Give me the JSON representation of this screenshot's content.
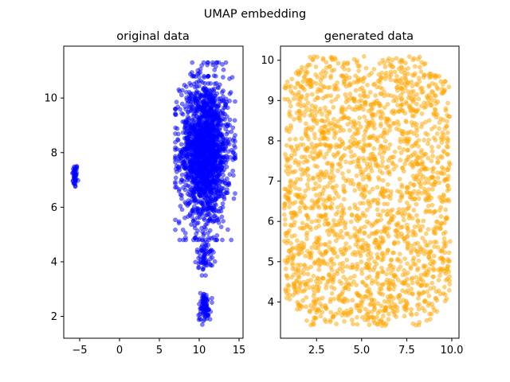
{
  "figure": {
    "suptitle": "UMAP embedding"
  },
  "chart_data": [
    {
      "type": "scatter",
      "title": "original data",
      "xlabel": "",
      "ylabel": "",
      "xlim": [
        -7,
        15.5
      ],
      "ylim": [
        1.2,
        11.9
      ],
      "xticks": [
        -5,
        0,
        5,
        10,
        15
      ],
      "xtick_labels": [
        "−5",
        "0",
        "5",
        "10",
        "15"
      ],
      "yticks": [
        2,
        4,
        6,
        8,
        10
      ],
      "ytick_labels": [
        "2",
        "4",
        "6",
        "8",
        "10"
      ],
      "grid": false,
      "marker_color": "#0000ff",
      "marker_alpha": 0.5,
      "series": [
        {
          "clusters": [
            {
              "x": [
                -6.0,
                -5.2
              ],
              "y": [
                6.6,
                7.7
              ],
              "count": 45
            },
            {
              "x": [
                7.0,
                14.5
              ],
              "y": [
                4.8,
                11.3
              ],
              "count": 1500
            },
            {
              "x": [
                8.0,
                13.0
              ],
              "y": [
                5.5,
                10.8
              ],
              "count": 400
            },
            {
              "x": [
                9.5,
                12.0
              ],
              "y": [
                3.5,
                5.0
              ],
              "count": 70
            },
            {
              "x": [
                9.7,
                11.6
              ],
              "y": [
                1.7,
                3.0
              ],
              "count": 90
            }
          ]
        }
      ]
    },
    {
      "type": "scatter",
      "title": "generated data",
      "xlabel": "",
      "ylabel": "",
      "xlim": [
        0.5,
        10.4
      ],
      "ylim": [
        3.1,
        10.35
      ],
      "xticks": [
        2.5,
        5.0,
        7.5,
        10.0
      ],
      "xtick_labels": [
        "2.5",
        "5.0",
        "7.5",
        "10.0"
      ],
      "yticks": [
        4,
        5,
        6,
        7,
        8,
        9,
        10
      ],
      "ytick_labels": [
        "4",
        "5",
        "6",
        "7",
        "8",
        "9",
        "10"
      ],
      "grid": false,
      "marker_color": "#ffa500",
      "marker_alpha": 0.5,
      "series": [
        {
          "clusters": [
            {
              "x": [
                0.7,
                9.9
              ],
              "y": [
                3.4,
                10.1
              ],
              "count": 2200
            }
          ]
        }
      ]
    }
  ]
}
